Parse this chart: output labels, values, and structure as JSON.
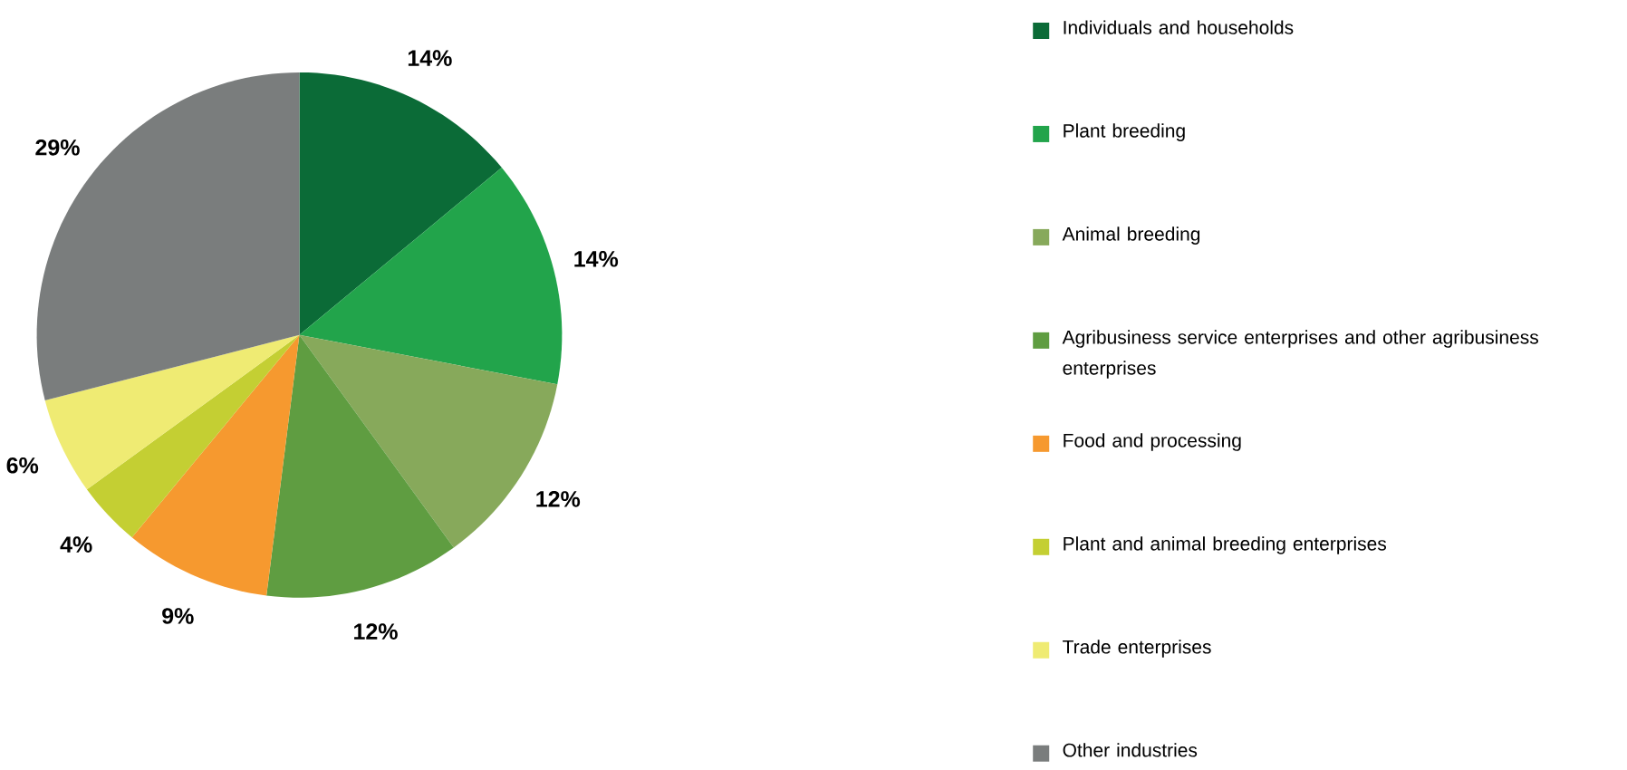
{
  "chart_data": {
    "type": "pie",
    "categories": [
      "Individuals and households",
      "Plant breeding",
      "Animal breeding",
      "Agribusiness service enterprises and other agribusiness enterprises",
      "Food and processing",
      "Plant and animal breeding enterprises",
      "Trade enterprises",
      "Other industries"
    ],
    "values": [
      14,
      14,
      12,
      12,
      9,
      4,
      6,
      29
    ],
    "value_labels": [
      "14%",
      "14%",
      "12%",
      "12%",
      "9%",
      "4%",
      "6%",
      "29%"
    ],
    "colors": [
      "#0b6b37",
      "#22a44b",
      "#87a95b",
      "#5f9d41",
      "#f6992f",
      "#c4cf33",
      "#efeb73",
      "#7a7d7d"
    ],
    "legend": "right"
  }
}
